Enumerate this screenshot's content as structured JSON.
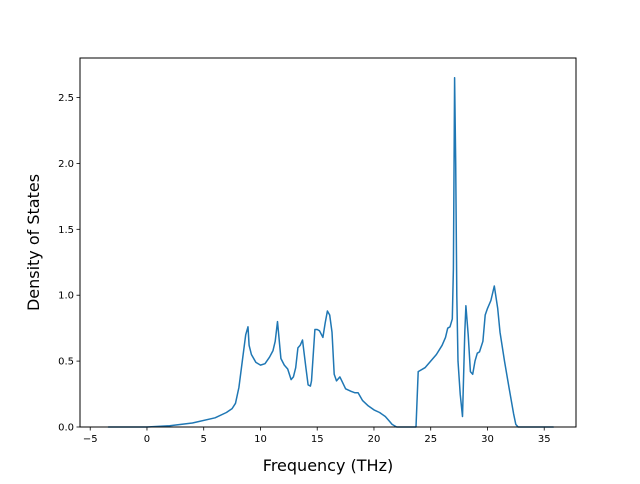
{
  "chart_data": {
    "type": "line",
    "title": "",
    "xlabel": "Frequency (THz)",
    "ylabel": "Density of States",
    "xlim": [
      -5.9,
      37.8
    ],
    "ylim": [
      0,
      2.8
    ],
    "x_ticks": [
      -5,
      0,
      5,
      10,
      15,
      20,
      25,
      30,
      35
    ],
    "x_tick_labels": [
      "−5",
      "0",
      "5",
      "10",
      "15",
      "20",
      "25",
      "30",
      "35"
    ],
    "y_ticks": [
      0.0,
      0.5,
      1.0,
      1.5,
      2.0,
      2.5
    ],
    "y_tick_labels": [
      "0.0",
      "0.5",
      "1.0",
      "1.5",
      "2.0",
      "2.5"
    ],
    "grid": false,
    "legend": "none",
    "series": [
      {
        "color": "#1f77b4",
        "x": [
          -3.4,
          0.0,
          2.0,
          4.0,
          6.0,
          7.0,
          7.5,
          7.8,
          8.1,
          8.4,
          8.7,
          8.9,
          9.0,
          9.2,
          9.6,
          10.0,
          10.4,
          10.8,
          11.1,
          11.3,
          11.5,
          11.8,
          12.1,
          12.4,
          12.7,
          12.9,
          13.1,
          13.3,
          13.5,
          13.7,
          14.0,
          14.2,
          14.4,
          14.5,
          14.8,
          15.0,
          15.2,
          15.5,
          15.7,
          15.9,
          16.1,
          16.3,
          16.5,
          16.7,
          17.0,
          17.5,
          18.0,
          18.3,
          18.6,
          19.0,
          19.5,
          20.0,
          20.5,
          21.0,
          21.3,
          21.6,
          22.0,
          22.5,
          23.0,
          23.5,
          23.7,
          23.9,
          24.5,
          25.0,
          25.5,
          26.0,
          26.3,
          26.5,
          26.7,
          26.9,
          27.0,
          27.1,
          27.2,
          27.3,
          27.4,
          27.6,
          27.8,
          28.0,
          28.1,
          28.3,
          28.5,
          28.7,
          28.9,
          29.1,
          29.3,
          29.6,
          29.8,
          30.0,
          30.3,
          30.6,
          30.9,
          31.1,
          31.5,
          31.9,
          32.3,
          32.5,
          32.7,
          33.0,
          34.0,
          35.8
        ],
        "y": [
          0.0,
          0.0,
          0.01,
          0.03,
          0.07,
          0.11,
          0.14,
          0.18,
          0.3,
          0.5,
          0.7,
          0.76,
          0.62,
          0.55,
          0.49,
          0.47,
          0.48,
          0.53,
          0.58,
          0.65,
          0.8,
          0.52,
          0.47,
          0.44,
          0.36,
          0.38,
          0.45,
          0.6,
          0.62,
          0.66,
          0.45,
          0.32,
          0.31,
          0.35,
          0.74,
          0.74,
          0.73,
          0.68,
          0.79,
          0.88,
          0.85,
          0.72,
          0.4,
          0.35,
          0.38,
          0.29,
          0.27,
          0.26,
          0.26,
          0.2,
          0.16,
          0.13,
          0.11,
          0.08,
          0.05,
          0.02,
          0.0,
          0.0,
          0.0,
          0.0,
          0.0,
          0.42,
          0.45,
          0.5,
          0.55,
          0.62,
          0.68,
          0.75,
          0.76,
          0.82,
          1.2,
          2.65,
          2.0,
          1.0,
          0.5,
          0.25,
          0.08,
          0.72,
          0.92,
          0.7,
          0.42,
          0.4,
          0.5,
          0.56,
          0.57,
          0.65,
          0.85,
          0.9,
          0.96,
          1.07,
          0.9,
          0.72,
          0.5,
          0.3,
          0.1,
          0.02,
          0.0,
          0.0,
          0.0,
          0.0
        ]
      }
    ]
  }
}
